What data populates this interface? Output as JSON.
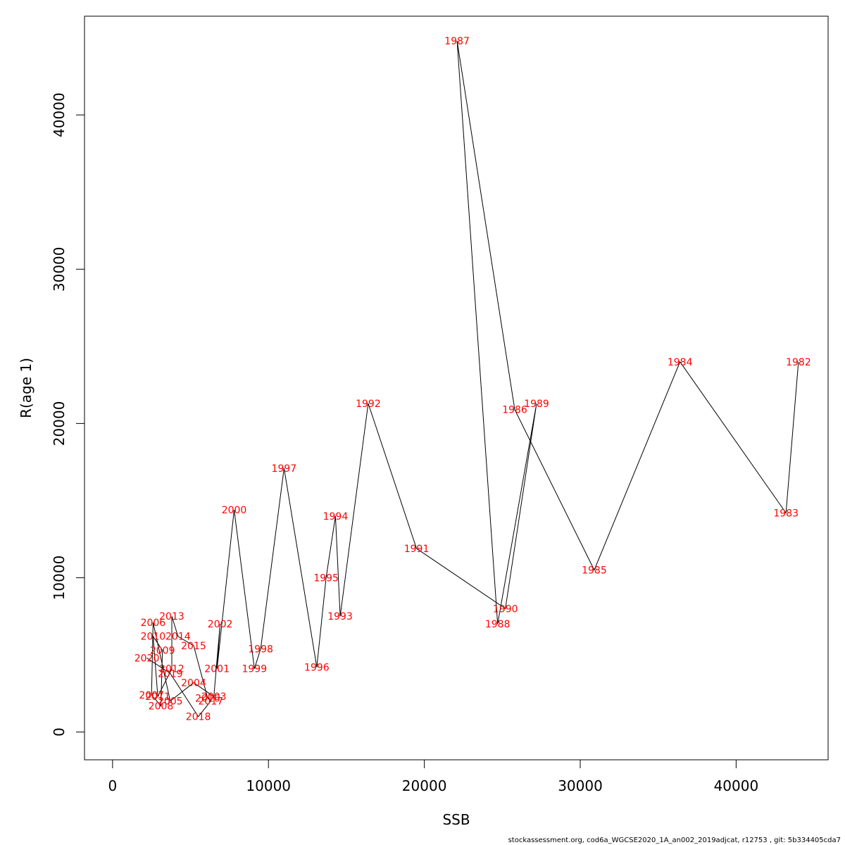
{
  "chart_data": {
    "type": "line",
    "title": "",
    "xlabel": "SSB",
    "ylabel": "R(age 1)",
    "xlim": [
      -1800,
      45900
    ],
    "ylim": [
      -1800,
      46400
    ],
    "xticks": [
      0,
      10000,
      20000,
      30000,
      40000
    ],
    "yticks": [
      0,
      10000,
      20000,
      30000,
      40000
    ],
    "grid": false,
    "line_color": "#000000",
    "label_color": "#ff0000",
    "points": [
      {
        "year": "1982",
        "ssb": 44000,
        "r": 24000
      },
      {
        "year": "1983",
        "ssb": 43200,
        "r": 14200
      },
      {
        "year": "1984",
        "ssb": 36400,
        "r": 24000
      },
      {
        "year": "1985",
        "ssb": 30900,
        "r": 10500
      },
      {
        "year": "1986",
        "ssb": 25800,
        "r": 20900
      },
      {
        "year": "1987",
        "ssb": 22100,
        "r": 44800
      },
      {
        "year": "1988",
        "ssb": 24700,
        "r": 7000
      },
      {
        "year": "1989",
        "ssb": 27200,
        "r": 21300
      },
      {
        "year": "1990",
        "ssb": 25200,
        "r": 8000
      },
      {
        "year": "1991",
        "ssb": 19500,
        "r": 11900
      },
      {
        "year": "1992",
        "ssb": 16400,
        "r": 21300
      },
      {
        "year": "1993",
        "ssb": 14600,
        "r": 7500
      },
      {
        "year": "1994",
        "ssb": 14300,
        "r": 14000
      },
      {
        "year": "1995",
        "ssb": 13700,
        "r": 10000
      },
      {
        "year": "1996",
        "ssb": 13100,
        "r": 4200
      },
      {
        "year": "1997",
        "ssb": 11000,
        "r": 17100
      },
      {
        "year": "1998",
        "ssb": 9500,
        "r": 5400
      },
      {
        "year": "1999",
        "ssb": 9100,
        "r": 4100
      },
      {
        "year": "2000",
        "ssb": 7800,
        "r": 14400
      },
      {
        "year": "2001",
        "ssb": 6700,
        "r": 4100
      },
      {
        "year": "2002",
        "ssb": 6900,
        "r": 7000
      },
      {
        "year": "2003",
        "ssb": 6500,
        "r": 2300
      },
      {
        "year": "2004",
        "ssb": 5200,
        "r": 3200
      },
      {
        "year": "2005",
        "ssb": 3700,
        "r": 2000
      },
      {
        "year": "2006",
        "ssb": 2600,
        "r": 7100
      },
      {
        "year": "2007",
        "ssb": 2500,
        "r": 2400
      },
      {
        "year": "2008",
        "ssb": 3100,
        "r": 1700
      },
      {
        "year": "2009",
        "ssb": 3200,
        "r": 5300
      },
      {
        "year": "2010",
        "ssb": 2600,
        "r": 6200
      },
      {
        "year": "2011",
        "ssb": 2900,
        "r": 2300
      },
      {
        "year": "2012",
        "ssb": 3800,
        "r": 4100
      },
      {
        "year": "2013",
        "ssb": 3800,
        "r": 7500
      },
      {
        "year": "2014",
        "ssb": 4200,
        "r": 6200
      },
      {
        "year": "2015",
        "ssb": 5200,
        "r": 5600
      },
      {
        "year": "2016",
        "ssb": 6100,
        "r": 2200
      },
      {
        "year": "2017",
        "ssb": 6300,
        "r": 2000
      },
      {
        "year": "2018",
        "ssb": 5500,
        "r": 1000
      },
      {
        "year": "2019",
        "ssb": 3700,
        "r": 3800
      },
      {
        "year": "2020",
        "ssb": 2200,
        "r": 4800
      }
    ]
  },
  "footer": {
    "text": "stockassessment.org, cod6a_WGCSE2020_1A_an002_2019adjcat, r12753 , git: 5b334405cda7"
  }
}
